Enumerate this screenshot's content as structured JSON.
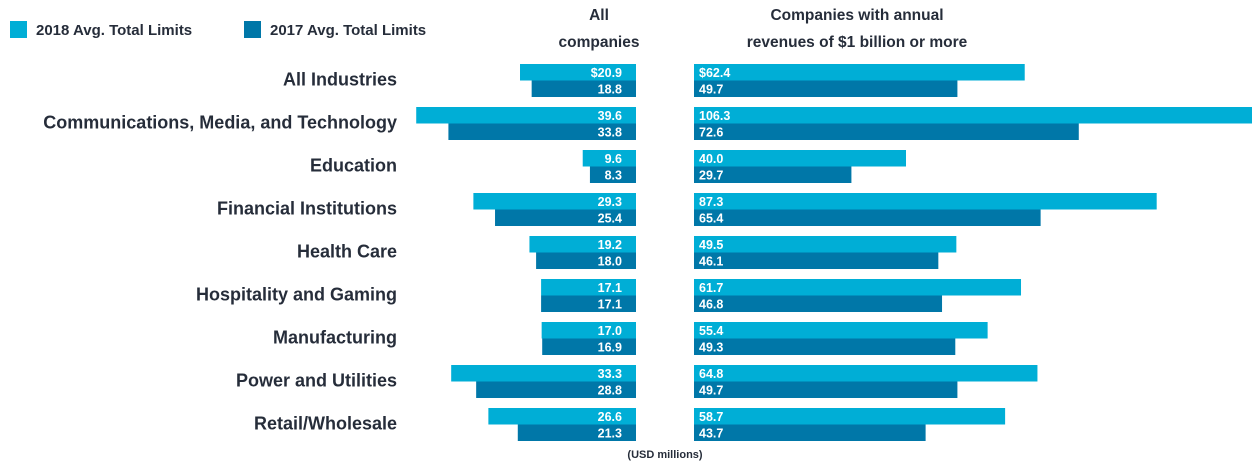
{
  "chart_data": {
    "type": "bar",
    "orientation": "horizontal-butterfly",
    "legend": [
      {
        "label": "2018 Avg. Total Limits",
        "color": "#00aed6"
      },
      {
        "label": "2017 Avg. Total Limits",
        "color": "#0077a8"
      }
    ],
    "panels": [
      {
        "title_line1": "All",
        "title_line2": "companies"
      },
      {
        "title_line1": "Companies with annual",
        "title_line2": "revenues of $1 billion or more"
      }
    ],
    "categories": [
      "All Industries",
      "Communications, Media, and Technology",
      "Education",
      "Financial Institutions",
      "Health Care",
      "Hospitality and Gaming",
      "Manufacturing",
      "Power and Utilities",
      "Retail/Wholesale"
    ],
    "all_companies": {
      "2018": [
        20.9,
        39.6,
        9.6,
        29.3,
        19.2,
        17.1,
        17.0,
        33.3,
        26.6
      ],
      "2017": [
        18.8,
        33.8,
        8.3,
        25.4,
        18.0,
        17.1,
        16.9,
        28.8,
        21.3
      ]
    },
    "large_companies": {
      "2018": [
        62.4,
        106.3,
        40.0,
        87.3,
        49.5,
        61.7,
        55.4,
        64.8,
        58.7
      ],
      "2017": [
        49.7,
        72.6,
        29.7,
        65.4,
        46.1,
        46.8,
        49.3,
        49.7,
        43.7
      ]
    },
    "first_label_prefix": "$",
    "unit_note": "(USD millions)"
  }
}
